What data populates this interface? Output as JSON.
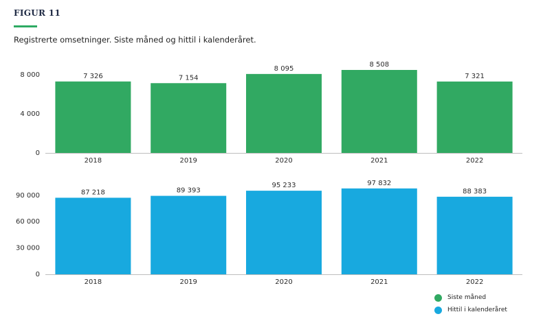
{
  "figure": {
    "label": "FIGUR 11",
    "subtitle": "Registrerte omsetninger. Siste måned og hittil i kalenderåret."
  },
  "colors": {
    "siste": "#31a962",
    "hittil": "#18a9df",
    "rule": "#2eaa63"
  },
  "legend": {
    "items": [
      {
        "label": "Siste måned",
        "color": "#31a962"
      },
      {
        "label": "Hittil i kalenderåret",
        "color": "#18a9df"
      }
    ]
  },
  "chart_data": [
    {
      "type": "bar",
      "categories": [
        "2018",
        "2019",
        "2020",
        "2021",
        "2022"
      ],
      "series": [
        {
          "name": "Siste måned",
          "values": [
            7326,
            7154,
            8095,
            8508,
            7321
          ],
          "labels": [
            "7 326",
            "7 154",
            "8 095",
            "8 508",
            "7 321"
          ]
        }
      ],
      "ylim": [
        0,
        9000
      ],
      "yticks": [
        0,
        4000,
        8000
      ],
      "ytick_labels": [
        "0",
        "4 000",
        "8 000"
      ],
      "grid": false
    },
    {
      "type": "bar",
      "categories": [
        "2018",
        "2019",
        "2020",
        "2021",
        "2022"
      ],
      "series": [
        {
          "name": "Hittil i kalenderåret",
          "values": [
            87218,
            89393,
            95233,
            97832,
            88383
          ],
          "labels": [
            "87 218",
            "89 393",
            "95 233",
            "97 832",
            "88 383"
          ]
        }
      ],
      "ylim": [
        0,
        100000
      ],
      "yticks": [
        0,
        30000,
        60000,
        90000
      ],
      "ytick_labels": [
        "0",
        "30 000",
        "60 000",
        "90 000"
      ],
      "grid": false
    }
  ]
}
